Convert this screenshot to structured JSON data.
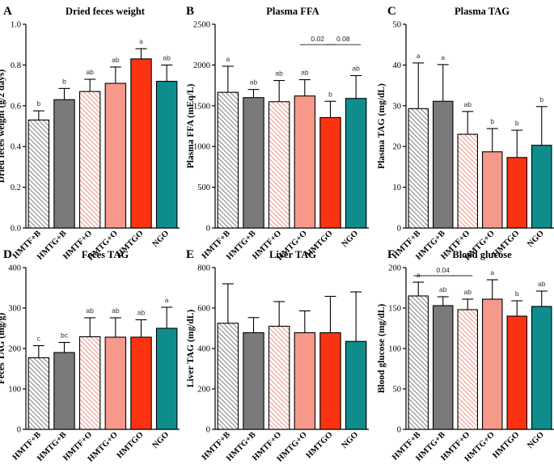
{
  "categories": [
    "HMTF+B",
    "HMTG+B",
    "HMTF+O",
    "HMTG+O",
    "HMTGO",
    "NGO"
  ],
  "colors": {
    "hatched_dark": "#888888",
    "hmtg_b": "#7a7a7a",
    "hatched_pink": "#f29a8c",
    "hmtg_o": "#f7998a",
    "hmtgo": "#fb3311",
    "ngo": "#0f8d8d"
  },
  "chart_data": [
    {
      "panel": "A",
      "type": "bar",
      "title": "Dried feces weight",
      "ylabel": "Dried feces weight (g/2 days)",
      "ylim": [
        0,
        1.0
      ],
      "yticks": [
        "0.0",
        "0.2",
        "0.4",
        "0.6",
        "0.8",
        "1.0"
      ],
      "yvals": [
        0,
        0.2,
        0.4,
        0.6,
        0.8,
        1.0
      ],
      "values": [
        0.53,
        0.63,
        0.67,
        0.71,
        0.83,
        0.72
      ],
      "errors": [
        0.045,
        0.055,
        0.06,
        0.08,
        0.05,
        0.08
      ],
      "letters": [
        "b",
        "b",
        "ab",
        "ab",
        "a",
        "ab"
      ],
      "comparisons": []
    },
    {
      "panel": "B",
      "type": "bar",
      "title": "Plasma FFA",
      "ylabel": "Plasma FFA (mEq/L)",
      "ylim": [
        0,
        2500
      ],
      "yticks": [
        "0",
        "500",
        "1000",
        "1500",
        "2000",
        "2500"
      ],
      "yvals": [
        0,
        500,
        1000,
        1500,
        2000,
        2500
      ],
      "values": [
        1665,
        1600,
        1550,
        1620,
        1355,
        1590
      ],
      "errors": [
        320,
        100,
        260,
        200,
        200,
        280
      ],
      "letters": [
        "a",
        "ab",
        "ab",
        "ab",
        "b",
        "ab"
      ],
      "comparisons": [
        {
          "from": 3,
          "to": 4,
          "label": "0.02",
          "y": 2250
        },
        {
          "from": 4,
          "to": 5,
          "label": "0.08",
          "y": 2250
        }
      ]
    },
    {
      "panel": "C",
      "type": "bar",
      "title": "Plasma TAG",
      "ylabel": "Plasma TAG (mg/dL)",
      "ylim": [
        0,
        50
      ],
      "yticks": [
        "0",
        "10",
        "20",
        "30",
        "40",
        "50"
      ],
      "yvals": [
        0,
        10,
        20,
        30,
        40,
        50
      ],
      "values": [
        29.3,
        31.1,
        23.0,
        18.7,
        17.3,
        20.3
      ],
      "errors": [
        11.2,
        9.0,
        5.6,
        5.7,
        6.7,
        9.5
      ],
      "letters": [
        "a",
        "a",
        "ab",
        "b",
        "b",
        "b"
      ],
      "comparisons": []
    },
    {
      "panel": "D",
      "type": "bar",
      "title": "Feces TAG",
      "ylabel": "Feces TAG (mg/g)",
      "ylim": [
        0,
        400
      ],
      "yticks": [
        "0",
        "100",
        "200",
        "300",
        "400"
      ],
      "yvals": [
        0,
        100,
        200,
        300,
        400
      ],
      "values": [
        177,
        190,
        229,
        228,
        228,
        250
      ],
      "errors": [
        30,
        25,
        47,
        48,
        43,
        52
      ],
      "letters": [
        "c",
        "bc",
        "ab",
        "ab",
        "ab",
        "a"
      ],
      "comparisons": []
    },
    {
      "panel": "E",
      "type": "bar",
      "title": "Liver TAG",
      "ylabel": "Liver TAG (mg/dL)",
      "ylim": [
        0,
        800
      ],
      "yticks": [
        "0",
        "200",
        "400",
        "600",
        "800"
      ],
      "yvals": [
        0,
        200,
        400,
        600,
        800
      ],
      "values": [
        525,
        478,
        510,
        478,
        478,
        435
      ],
      "errors": [
        195,
        75,
        122,
        108,
        180,
        245
      ],
      "letters": [
        "",
        "",
        "",
        "",
        "",
        ""
      ],
      "comparisons": []
    },
    {
      "panel": "F",
      "type": "bar",
      "title": "Blood glucose",
      "ylabel": "Blood glucose (mg/dL)",
      "ylim": [
        0,
        200
      ],
      "yticks": [
        "0",
        "50",
        "100",
        "150",
        "200"
      ],
      "yvals": [
        0,
        50,
        100,
        150,
        200
      ],
      "values": [
        165,
        153,
        148,
        161,
        140,
        152
      ],
      "errors": [
        17,
        11,
        13,
        24,
        19,
        19
      ],
      "letters": [
        "a",
        "ab",
        "ab",
        "a",
        "b",
        "ab"
      ],
      "comparisons": [
        {
          "from": 0,
          "to": 2,
          "label": "0.04",
          "y": 190
        }
      ]
    }
  ]
}
